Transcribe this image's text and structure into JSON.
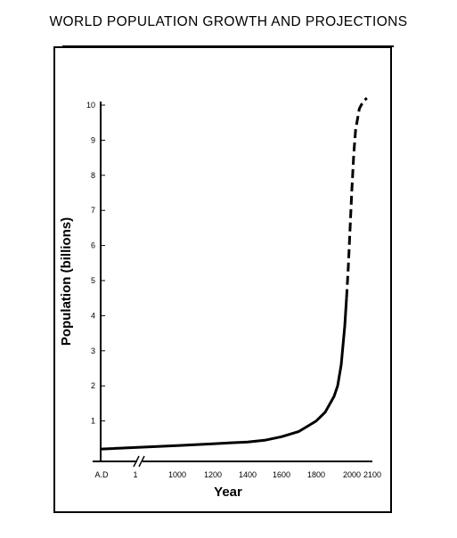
{
  "page": {
    "title": "WORLD POPULATION GROWTH AND PROJECTIONS"
  },
  "chart_data": {
    "type": "line",
    "title": "WORLD POPULATION GROWTH AND PROJECTIONS",
    "xlabel": "Year",
    "ylabel": "Population (billions)",
    "ylim": [
      0,
      10
    ],
    "yticks": [
      1,
      2,
      3,
      4,
      5,
      6,
      7,
      8,
      9,
      10
    ],
    "xticks": [
      "A.D",
      "1",
      "1000",
      "1200",
      "1400",
      "1600",
      "1800",
      "2000",
      "2100"
    ],
    "grid": false,
    "axis_break": true,
    "series": [
      {
        "style": "solid",
        "x": [
          1,
          1000,
          1200,
          1400,
          1500,
          1600,
          1700,
          1750,
          1800,
          1850,
          1900,
          1920,
          1940,
          1960,
          1970
        ],
        "y": [
          0.2,
          0.3,
          0.35,
          0.4,
          0.45,
          0.55,
          0.7,
          0.85,
          1.0,
          1.25,
          1.7,
          2.0,
          2.6,
          3.7,
          4.5
        ]
      },
      {
        "style": "dashed",
        "x": [
          1970,
          1980,
          1990,
          2000,
          2010,
          2020,
          2040,
          2060,
          2080
        ],
        "y": [
          4.5,
          5.4,
          6.5,
          7.6,
          8.6,
          9.3,
          9.9,
          10.1,
          10.2
        ]
      }
    ]
  }
}
